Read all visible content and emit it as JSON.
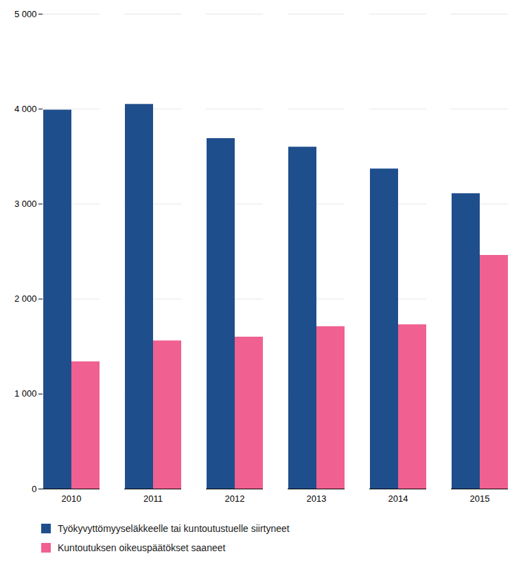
{
  "chart_data": {
    "type": "bar",
    "categories": [
      "2010",
      "2011",
      "2012",
      "2013",
      "2014",
      "2015"
    ],
    "series": [
      {
        "name": "Työkyvyttömyyseläkkeelle tai kuntoutustuelle siirtyneet",
        "color": "#1F4E8C",
        "values": [
          3990,
          4050,
          3690,
          3600,
          3370,
          3110
        ]
      },
      {
        "name": "Kuntoutuksen oikeuspäätökset saaneet",
        "color": "#F06090",
        "values": [
          1340,
          1560,
          1600,
          1710,
          1730,
          2460
        ]
      }
    ],
    "ylim": [
      0,
      5000
    ],
    "yticks": [
      0,
      {
        "value": 1000,
        "label": "1 000"
      },
      {
        "value": 2000,
        "label": "2 000"
      },
      {
        "value": 3000,
        "label": "3 000"
      },
      {
        "value": 4000,
        "label": "4 000"
      },
      {
        "value": 5000,
        "label": "5 000"
      }
    ],
    "grid": true,
    "legend": "bottom"
  }
}
